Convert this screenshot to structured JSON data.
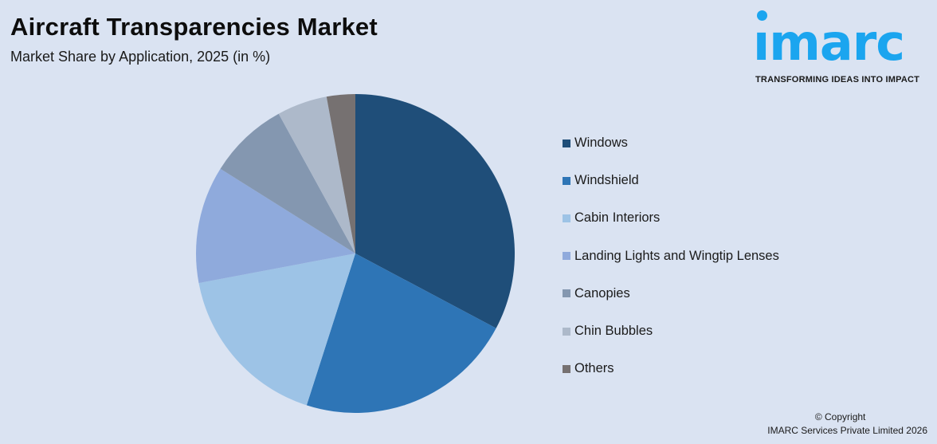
{
  "header": {
    "title": "Aircraft Transparencies Market",
    "subtitle": "Market Share by Application, 2025 (in %)"
  },
  "logo": {
    "wordmark": "ımarc",
    "tagline": "TRANSFORMING IDEAS INTO IMPACT",
    "color": "#1ba5ef"
  },
  "chart_data": {
    "type": "pie",
    "title": "Aircraft Transparencies Market",
    "subtitle": "Market Share by Application, 2025 (in %)",
    "values_are_estimated": true,
    "estimation_note": "No percentages are printed on the chart. Values are approximate, estimated from slice boundary angles in the screenshot.",
    "categories": [
      "Windows",
      "Windshield",
      "Cabin Interiors",
      "Landing Lights and Wingtip Lenses",
      "Canopies",
      "Chin Bubbles",
      "Others"
    ],
    "values": [
      32.8,
      22.2,
      17.1,
      11.9,
      8.1,
      5.1,
      2.9
    ],
    "colors": [
      "#1f4e79",
      "#2e75b6",
      "#9dc3e6",
      "#8faadc",
      "#8497b0",
      "#adb9ca",
      "#767171"
    ],
    "start_angle_deg": 0,
    "direction": "clockwise",
    "legend_position": "right"
  },
  "legend": {
    "items": [
      {
        "label": "Windows",
        "color": "#1f4e79"
      },
      {
        "label": "Windshield",
        "color": "#2e75b6"
      },
      {
        "label": "Cabin Interiors",
        "color": "#9dc3e6"
      },
      {
        "label": "Landing Lights and Wingtip Lenses",
        "color": "#8faadc"
      },
      {
        "label": "Canopies",
        "color": "#8497b0"
      },
      {
        "label": "Chin Bubbles",
        "color": "#adb9ca"
      },
      {
        "label": "Others",
        "color": "#767171"
      }
    ]
  },
  "footer": {
    "copyright_line1": "© Copyright",
    "copyright_line2": "IMARC Services Private Limited 2026"
  }
}
